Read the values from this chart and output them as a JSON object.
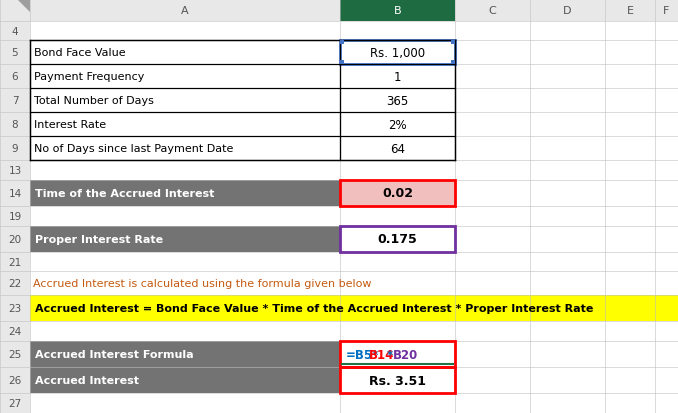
{
  "bg_color": "#FFFFFF",
  "col_header_bg": "#E8E8E8",
  "col_header_selected_bg": "#1E6B42",
  "col_header_selected_text": "#FFFFFF",
  "row_header_bg": "#E8E8E8",
  "gray_cell_bg": "#737373",
  "gray_cell_text": "#FFFFFF",
  "yellow_bg": "#FFFF00",
  "pink_bg": "#F2BFBF",
  "white_cell_bg": "#FFFFFF",
  "grid_color": "#C0C0C0",
  "dark_border": "#000000",
  "blue_border": "#4472C4",
  "red_border": "#FF0000",
  "purple_border": "#7030A0",
  "green_line": "#217346",
  "orange_text": "#C55A11",
  "formula_parts": [
    {
      "text": "=B5*",
      "color": "#0070C0"
    },
    {
      "text": "B14",
      "color": "#FF0000"
    },
    {
      "text": "*",
      "color": "#0070C0"
    },
    {
      "text": "B20",
      "color": "#7030A0"
    }
  ],
  "rows": {
    "4": {
      "label": "4",
      "A": "",
      "B": ""
    },
    "5": {
      "label": "5",
      "A": "Bond Face Value",
      "B": "Rs. 1,000"
    },
    "6": {
      "label": "6",
      "A": "Payment Frequency",
      "B": "1"
    },
    "7": {
      "label": "7",
      "A": "Total Number of Days",
      "B": "365"
    },
    "8": {
      "label": "8",
      "A": "Interest Rate",
      "B": "2%"
    },
    "9": {
      "label": "9",
      "A": "No of Days since last Payment Date",
      "B": "64"
    },
    "13": {
      "label": "13",
      "A": "",
      "B": ""
    },
    "14": {
      "label": "14",
      "A": "Time of the Accrued Interest",
      "B": "0.02"
    },
    "19": {
      "label": "19",
      "A": "",
      "B": ""
    },
    "20": {
      "label": "20",
      "A": "Proper Interest Rate",
      "B": "0.175"
    },
    "21": {
      "label": "21",
      "A": "",
      "B": ""
    },
    "22": {
      "label": "22",
      "A": "Accrued Interest is calculated using the formula given below",
      "B": ""
    },
    "23": {
      "label": "23",
      "A": "Accrued Interest = Bond Face Value * Time of the Accrued Interest * Proper Interest Rate",
      "B": ""
    },
    "24": {
      "label": "24",
      "A": "",
      "B": ""
    },
    "25": {
      "label": "25",
      "A": "Accrued Interest Formula",
      "B": "=B5*B14*B20"
    },
    "26": {
      "label": "26",
      "A": "Accrued Interest",
      "B": "Rs. 3.51"
    },
    "27": {
      "label": "27",
      "A": "",
      "B": ""
    }
  }
}
